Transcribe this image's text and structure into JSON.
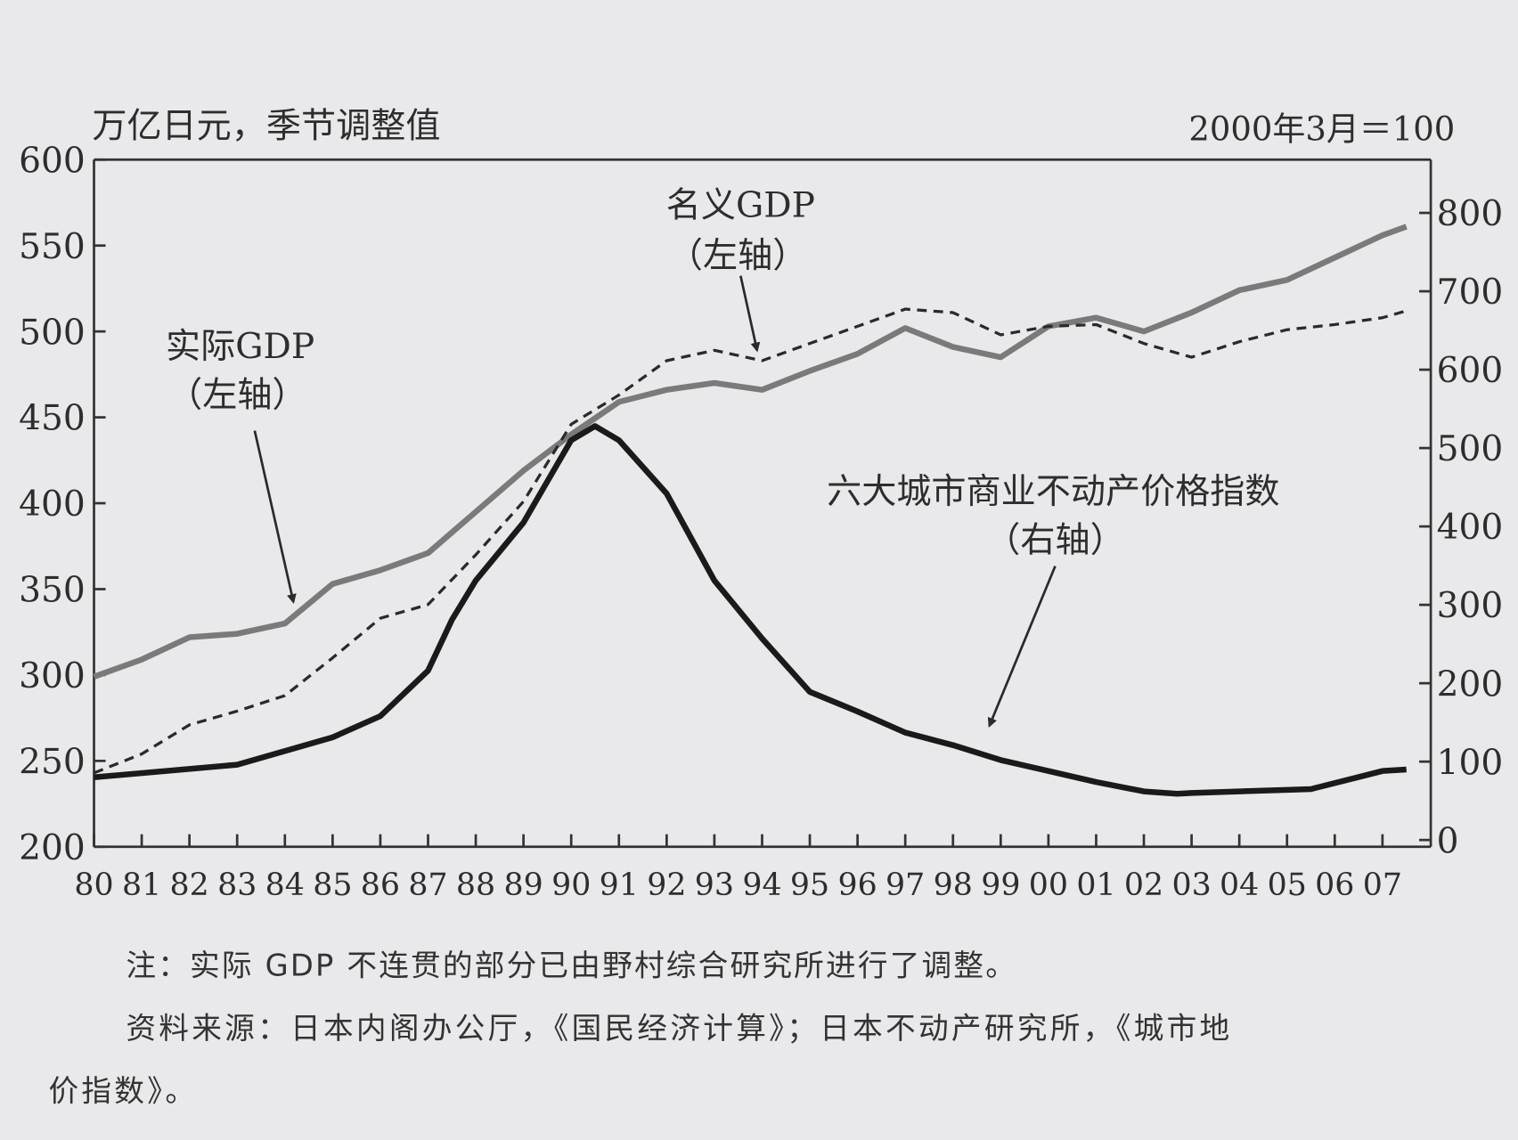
{
  "chart_data": {
    "type": "line",
    "left_axis_label": "万亿日元，季节调整值",
    "right_axis_label": "2000年3月＝100",
    "x_ticks": [
      "80",
      "81",
      "82",
      "83",
      "84",
      "85",
      "86",
      "87",
      "88",
      "89",
      "90",
      "91",
      "92",
      "93",
      "94",
      "95",
      "96",
      "97",
      "98",
      "99",
      "00",
      "01",
      "02",
      "03",
      "04",
      "05",
      "06",
      "07"
    ],
    "left_ylim": [
      200,
      600
    ],
    "left_ticks": [
      "600",
      "550",
      "500",
      "450",
      "400",
      "350",
      "300",
      "250",
      "200"
    ],
    "right_ylim": [
      0,
      870
    ],
    "right_ticks": [
      "800",
      "700",
      "600",
      "500",
      "400",
      "300",
      "200",
      "100",
      "0"
    ],
    "series": [
      {
        "name": "实际GDP",
        "axis_note": "（左轴）",
        "axis": "left",
        "style": "gray-solid",
        "color": "#7a7a7a",
        "x": [
          1980,
          1981,
          1982,
          1983,
          1984,
          1985,
          1986,
          1987,
          1988,
          1989,
          1990,
          1991,
          1992,
          1993,
          1994,
          1995,
          1996,
          1997,
          1998,
          1999,
          2000,
          2001,
          2002,
          2003,
          2004,
          2005,
          2006,
          2007,
          2007.5
        ],
        "y": [
          299,
          309,
          322,
          324,
          330,
          353,
          361,
          371,
          395,
          419,
          440,
          459,
          466,
          470,
          466,
          477,
          487,
          502,
          491,
          485,
          503,
          508,
          500,
          511,
          524,
          530,
          543,
          556,
          561
        ]
      },
      {
        "name": "名义GDP",
        "axis_note": "（左轴）",
        "axis": "left",
        "style": "dashed",
        "color": "#2a2a2a",
        "x": [
          1980,
          1981,
          1982,
          1983,
          1984,
          1985,
          1986,
          1987,
          1988,
          1989,
          1990,
          1991,
          1992,
          1993,
          1994,
          1995,
          1996,
          1997,
          1998,
          1999,
          2000,
          2001,
          2002,
          2003,
          2004,
          2005,
          2006,
          2007,
          2007.5
        ],
        "y": [
          243,
          254,
          271,
          279,
          288,
          310,
          333,
          341,
          370,
          401,
          446,
          463,
          483,
          489,
          483,
          493,
          503,
          513,
          511,
          498,
          503,
          504,
          493,
          485,
          494,
          501,
          504,
          508,
          512
        ]
      },
      {
        "name": "六大城市商业不动产价格指数",
        "axis_note": "（右轴）",
        "axis": "right",
        "style": "black-thick",
        "color": "#1a1a1a",
        "x": [
          1980,
          1983,
          1985,
          1986,
          1987,
          1987.5,
          1988,
          1989,
          1990,
          1990.5,
          1991,
          1992,
          1993,
          1994,
          1995,
          1996,
          1997,
          1998,
          1999,
          2000,
          2001,
          2002,
          2002.7,
          2003,
          2005,
          2005.5,
          2007,
          2007.5
        ],
        "y": [
          80,
          96,
          131,
          158,
          216,
          281,
          331,
          405,
          510,
          528,
          510,
          442,
          331,
          257,
          189,
          164,
          137,
          121,
          102,
          88,
          74,
          62,
          59,
          60,
          64,
          65,
          88,
          90
        ]
      }
    ],
    "grid": false,
    "legend": "inline annotations with arrows"
  },
  "notes": {
    "note": "注：实际 GDP 不连贯的部分已由野村综合研究所进行了调整。",
    "source_line1": "资料来源：日本内阁办公厅，《国民经济计算》；日本不动产研究所，《城市地",
    "source_line2": "价指数》。"
  }
}
